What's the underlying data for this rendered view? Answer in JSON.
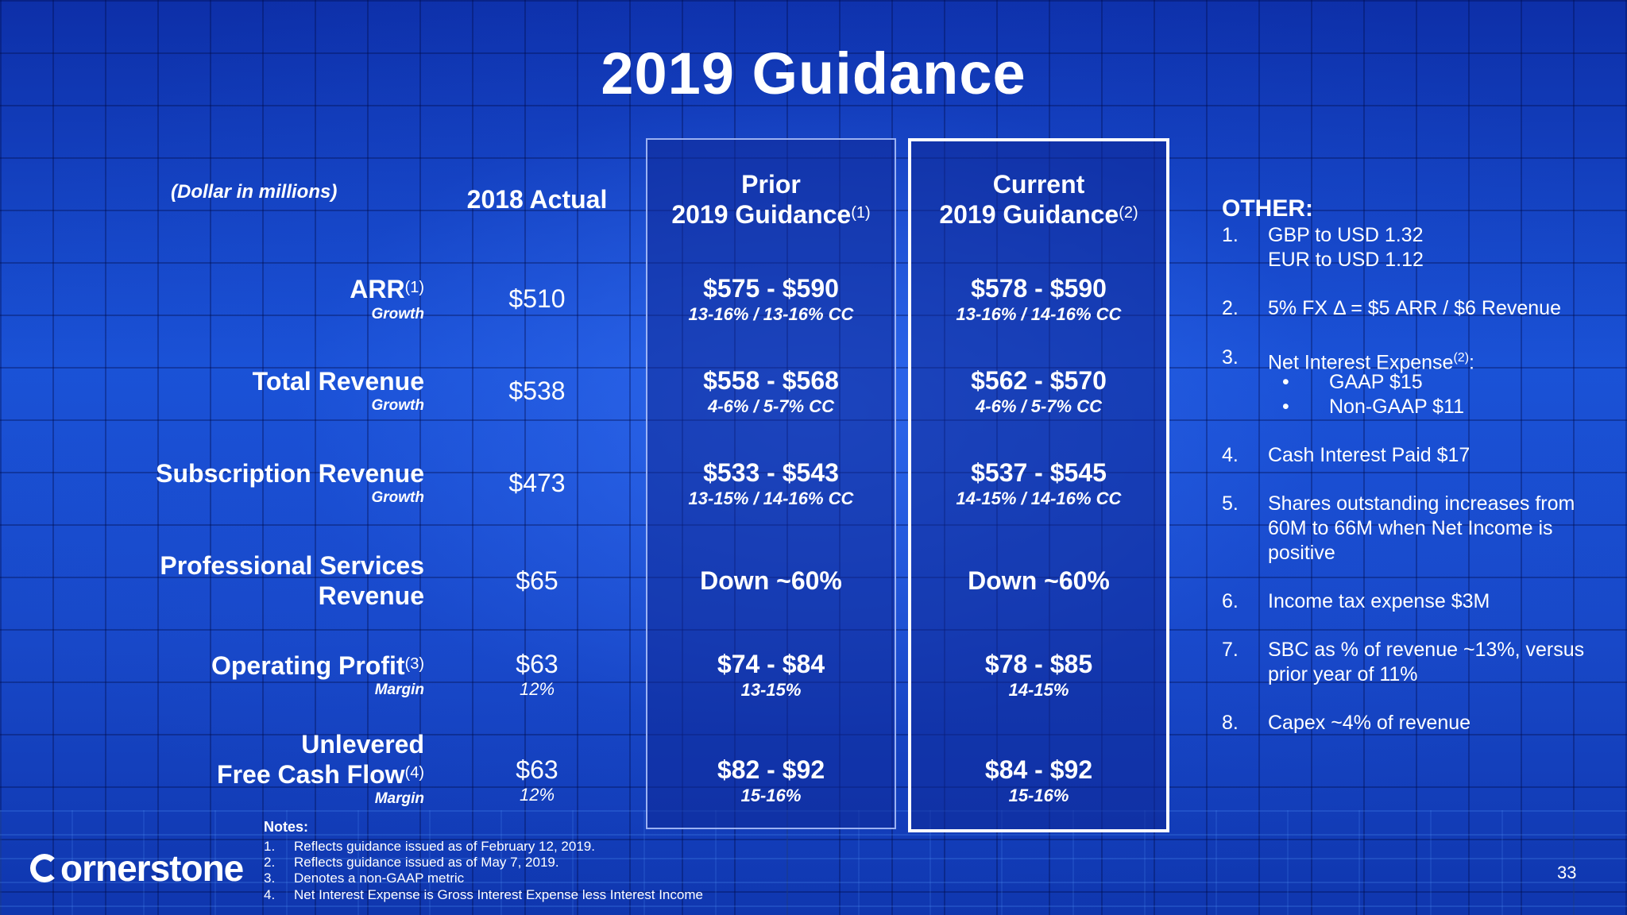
{
  "title": "2019 Guidance",
  "units_note": "(Dollar in millions)",
  "headers": {
    "actual": "2018 Actual",
    "prior_line1": "Prior",
    "prior_line2": "2019 Guidance",
    "prior_sup": "(1)",
    "current_line1": "Current",
    "current_line2": "2019 Guidance",
    "current_sup": "(2)"
  },
  "rows": [
    {
      "label": "ARR",
      "label_sup": "(1)",
      "sub": "Growth",
      "actual": "$510",
      "actual_sub": "",
      "prior": "$575 - $590",
      "prior_sub": "13-16% / 13-16% CC",
      "current": "$578 - $590",
      "current_sub": "13-16% / 14-16% CC"
    },
    {
      "label": "Total Revenue",
      "sub": "Growth",
      "actual": "$538",
      "actual_sub": "",
      "prior": "$558 - $568",
      "prior_sub": "4-6% / 5-7% CC",
      "current": "$562 - $570",
      "current_sub": "4-6% / 5-7% CC"
    },
    {
      "label": "Subscription Revenue",
      "sub": "Growth",
      "actual": "$473",
      "actual_sub": "",
      "prior": "$533 - $543",
      "prior_sub": "13-15% / 14-16% CC",
      "current": "$537 - $545",
      "current_sub": "14-15% / 14-16% CC"
    },
    {
      "label_line1": "Professional Services",
      "label_line2": "Revenue",
      "actual": "$65",
      "prior": "Down ~60%",
      "current": "Down ~60%"
    },
    {
      "label": "Operating Profit",
      "label_sup": "(3)",
      "sub": "Margin",
      "actual": "$63",
      "actual_sub": "12%",
      "prior": "$74 - $84",
      "prior_sub": "13-15%",
      "current": "$78 - $85",
      "current_sub": "14-15%"
    },
    {
      "label_line1": "Unlevered",
      "label_line2": "Free Cash Flow",
      "label_sup": "(4)",
      "sub": "Margin",
      "actual": "$63",
      "actual_sub": "12%",
      "prior": "$82 - $92",
      "prior_sub": "15-16%",
      "current": "$84 - $92",
      "current_sub": "15-16%"
    }
  ],
  "other": {
    "title": "OTHER:",
    "items": [
      {
        "num": "1.",
        "line1": "GBP to USD 1.32",
        "line2": "EUR to USD 1.12"
      },
      {
        "num": "2.",
        "text": "5% FX Δ  = $5 ARR / $6 Revenue"
      },
      {
        "num": "3.",
        "text": "Net Interest Expense",
        "sup": "(2)",
        "suffix": ":",
        "bullets": [
          "GAAP $15",
          "Non-GAAP $11"
        ]
      },
      {
        "num": "4.",
        "text": "Cash Interest Paid $17"
      },
      {
        "num": "5.",
        "text": "Shares outstanding increases from 60M to 66M when Net Income is positive"
      },
      {
        "num": "6.",
        "text": "Income tax expense $3M"
      },
      {
        "num": "7.",
        "text": "SBC as % of revenue ~13%, versus prior year of 11%"
      },
      {
        "num": "8.",
        "text": "Capex ~4% of revenue"
      }
    ],
    "bullet_glyph": "•"
  },
  "notes": {
    "title": "Notes:",
    "items": [
      {
        "num": "1.",
        "text": "Reflects guidance issued as of February 12, 2019."
      },
      {
        "num": "2.",
        "text": "Reflects guidance issued as of May 7, 2019."
      },
      {
        "num": "3.",
        "text": "Denotes a non-GAAP metric"
      },
      {
        "num": "4.",
        "text": "Net Interest Expense is Gross Interest Expense less Interest Income"
      }
    ]
  },
  "logo": {
    "text": "ornerstone"
  },
  "page_number": "33"
}
